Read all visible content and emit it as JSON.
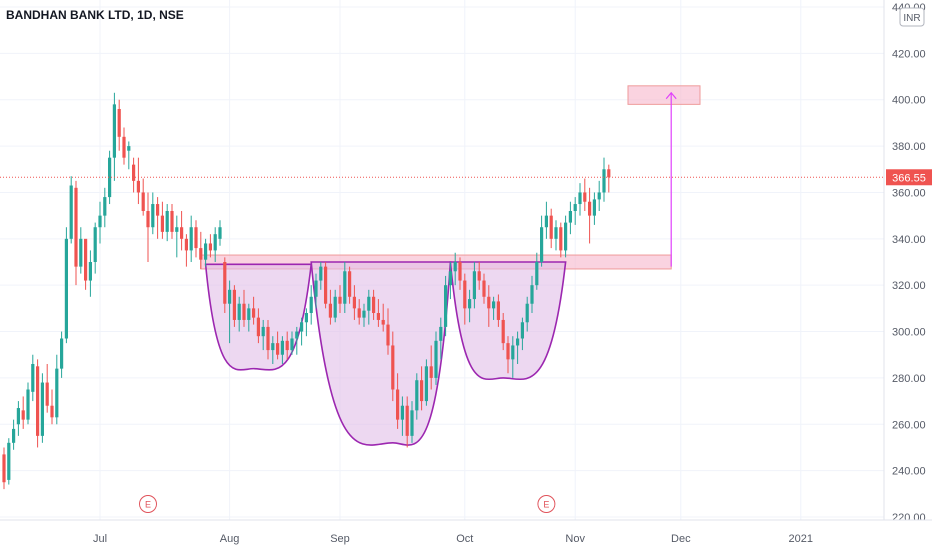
{
  "title": "BANDHAN BANK LTD, 1D, NSE",
  "currency": "INR",
  "chart_data": {
    "type": "candlestick",
    "title": "BANDHAN BANK LTD, 1D, NSE",
    "ylim": [
      220,
      440
    ],
    "y_ticks": [
      "220.00",
      "240.00",
      "260.00",
      "280.00",
      "300.00",
      "320.00",
      "340.00",
      "360.00",
      "380.00",
      "400.00",
      "420.00",
      "440.00"
    ],
    "x_ticks": [
      {
        "label": "Jul",
        "day": 20
      },
      {
        "label": "Aug",
        "day": 47
      },
      {
        "label": "Sep",
        "day": 70
      },
      {
        "label": "Oct",
        "day": 96
      },
      {
        "label": "Nov",
        "day": 119
      },
      {
        "label": "Dec",
        "day": 141
      },
      {
        "label": "2021",
        "day": 166
      }
    ],
    "last_price": "366.55",
    "last_price_value": 366.55,
    "candles": [
      [
        0,
        247,
        250,
        232,
        235
      ],
      [
        1,
        236,
        254,
        234,
        252
      ],
      [
        2,
        252,
        262,
        249,
        258
      ],
      [
        3,
        260,
        270,
        255,
        267
      ],
      [
        4,
        266,
        272,
        258,
        262
      ],
      [
        5,
        262,
        278,
        260,
        275
      ],
      [
        6,
        274,
        290,
        270,
        286
      ],
      [
        7,
        285,
        288,
        250,
        255
      ],
      [
        8,
        255,
        282,
        252,
        278
      ],
      [
        9,
        278,
        286,
        265,
        268
      ],
      [
        10,
        268,
        275,
        260,
        263
      ],
      [
        11,
        263,
        290,
        260,
        284
      ],
      [
        12,
        284,
        300,
        280,
        297
      ],
      [
        13,
        297,
        345,
        295,
        340
      ],
      [
        14,
        340,
        367,
        338,
        363
      ],
      [
        15,
        362,
        365,
        320,
        328
      ],
      [
        16,
        328,
        345,
        325,
        340
      ],
      [
        17,
        340,
        338,
        318,
        322
      ],
      [
        18,
        322,
        335,
        315,
        330
      ],
      [
        19,
        330,
        347,
        325,
        345
      ],
      [
        20,
        345,
        356,
        338,
        350
      ],
      [
        21,
        350,
        362,
        345,
        358
      ],
      [
        22,
        358,
        378,
        355,
        375
      ],
      [
        23,
        375,
        403,
        365,
        398
      ],
      [
        24,
        396,
        400,
        378,
        384
      ],
      [
        25,
        384,
        388,
        372,
        375
      ],
      [
        26,
        378,
        382,
        370,
        380
      ],
      [
        27,
        372,
        375,
        360,
        365
      ],
      [
        28,
        365,
        375,
        355,
        360
      ],
      [
        29,
        360,
        366,
        350,
        352
      ],
      [
        30,
        352,
        360,
        330,
        345
      ],
      [
        31,
        345,
        360,
        342,
        355
      ],
      [
        32,
        355,
        358,
        340,
        350
      ],
      [
        33,
        350,
        356,
        340,
        343
      ],
      [
        34,
        343,
        355,
        339,
        352
      ],
      [
        35,
        352,
        355,
        340,
        343
      ],
      [
        36,
        343,
        350,
        332,
        345
      ],
      [
        37,
        345,
        352,
        335,
        340
      ],
      [
        38,
        340,
        342,
        328,
        335
      ],
      [
        39,
        335,
        350,
        330,
        345
      ],
      [
        40,
        345,
        348,
        332,
        336
      ],
      [
        41,
        336,
        343,
        327,
        331
      ],
      [
        42,
        331,
        340,
        328,
        338
      ],
      [
        43,
        338,
        342,
        332,
        335
      ],
      [
        44,
        335,
        345,
        330,
        342
      ],
      [
        45,
        340,
        348,
        337,
        345
      ],
      [
        46,
        330,
        332,
        308,
        312
      ],
      [
        47,
        312,
        322,
        295,
        318
      ],
      [
        48,
        318,
        320,
        302,
        305
      ],
      [
        49,
        305,
        315,
        300,
        312
      ],
      [
        50,
        312,
        318,
        302,
        305
      ],
      [
        51,
        305,
        312,
        300,
        310
      ],
      [
        52,
        310,
        315,
        303,
        306
      ],
      [
        53,
        306,
        310,
        295,
        298
      ],
      [
        54,
        298,
        305,
        292,
        302
      ],
      [
        55,
        302,
        305,
        288,
        292
      ],
      [
        56,
        292,
        298,
        286,
        295
      ],
      [
        57,
        295,
        300,
        288,
        290
      ],
      [
        58,
        290,
        298,
        286,
        296
      ],
      [
        59,
        296,
        300,
        288,
        292
      ],
      [
        60,
        292,
        300,
        290,
        297
      ],
      [
        61,
        297,
        302,
        290,
        300
      ],
      [
        62,
        300,
        306,
        294,
        304
      ],
      [
        63,
        304,
        310,
        298,
        308
      ],
      [
        64,
        308,
        320,
        303,
        315
      ],
      [
        65,
        315,
        325,
        310,
        322
      ],
      [
        66,
        322,
        330,
        318,
        328
      ],
      [
        67,
        328,
        330,
        310,
        312
      ],
      [
        68,
        312,
        318,
        303,
        306
      ],
      [
        69,
        306,
        318,
        304,
        315
      ],
      [
        70,
        315,
        320,
        308,
        312
      ],
      [
        71,
        312,
        330,
        308,
        326
      ],
      [
        72,
        326,
        328,
        312,
        315
      ],
      [
        73,
        315,
        320,
        305,
        310
      ],
      [
        74,
        310,
        314,
        303,
        306
      ],
      [
        75,
        306,
        312,
        302,
        309
      ],
      [
        76,
        309,
        318,
        303,
        315
      ],
      [
        77,
        315,
        318,
        305,
        308
      ],
      [
        78,
        308,
        314,
        302,
        305
      ],
      [
        79,
        305,
        312,
        300,
        303
      ],
      [
        80,
        303,
        310,
        290,
        294
      ],
      [
        81,
        294,
        300,
        270,
        275
      ],
      [
        82,
        275,
        282,
        258,
        262
      ],
      [
        83,
        262,
        272,
        255,
        268
      ],
      [
        84,
        268,
        272,
        250,
        255
      ],
      [
        85,
        255,
        270,
        252,
        266
      ],
      [
        86,
        266,
        282,
        262,
        279
      ],
      [
        87,
        279,
        285,
        266,
        270
      ],
      [
        88,
        270,
        288,
        268,
        285
      ],
      [
        89,
        285,
        294,
        275,
        280
      ],
      [
        90,
        280,
        300,
        277,
        296
      ],
      [
        91,
        296,
        306,
        288,
        302
      ],
      [
        92,
        302,
        324,
        298,
        320
      ],
      [
        93,
        320,
        330,
        314,
        326
      ],
      [
        94,
        326,
        334,
        320,
        330
      ],
      [
        95,
        330,
        332,
        318,
        322
      ],
      [
        96,
        322,
        325,
        303,
        310
      ],
      [
        97,
        310,
        318,
        304,
        314
      ],
      [
        98,
        314,
        330,
        310,
        326
      ],
      [
        99,
        326,
        330,
        318,
        322
      ],
      [
        100,
        322,
        325,
        312,
        315
      ],
      [
        101,
        315,
        320,
        302,
        310
      ],
      [
        102,
        310,
        315,
        305,
        313
      ],
      [
        103,
        313,
        316,
        302,
        305
      ],
      [
        104,
        305,
        308,
        292,
        295
      ],
      [
        105,
        295,
        298,
        282,
        288
      ],
      [
        106,
        288,
        298,
        280,
        294
      ],
      [
        107,
        294,
        300,
        286,
        297
      ],
      [
        108,
        297,
        306,
        292,
        304
      ],
      [
        109,
        304,
        315,
        300,
        312
      ],
      [
        110,
        312,
        324,
        308,
        320
      ],
      [
        111,
        320,
        334,
        318,
        330
      ],
      [
        112,
        330,
        350,
        328,
        345
      ],
      [
        113,
        345,
        356,
        340,
        350
      ],
      [
        114,
        350,
        353,
        336,
        340
      ],
      [
        115,
        340,
        348,
        335,
        345
      ],
      [
        116,
        345,
        347,
        332,
        335
      ],
      [
        117,
        335,
        350,
        332,
        347
      ],
      [
        118,
        347,
        356,
        342,
        352
      ],
      [
        119,
        352,
        358,
        346,
        355
      ],
      [
        120,
        355,
        364,
        350,
        360
      ],
      [
        121,
        360,
        366,
        352,
        356
      ],
      [
        122,
        356,
        362,
        338,
        350
      ],
      [
        123,
        350,
        360,
        346,
        357
      ],
      [
        124,
        357,
        365,
        352,
        360
      ],
      [
        125,
        360,
        375,
        356,
        370
      ],
      [
        126,
        370,
        372,
        360,
        366.55
      ]
    ],
    "annotations": {
      "neckline_zone": {
        "day_start": 41,
        "day_end": 139,
        "y_low": 327,
        "y_high": 333
      },
      "target_zone": {
        "day_start": 130,
        "day_end": 145,
        "y_low": 398,
        "y_high": 406
      },
      "target_arrow": {
        "day": 139,
        "y_from": 328,
        "y_to": 403
      },
      "cups": [
        {
          "day_start": 42,
          "day_end": 64,
          "bottom_day": 52,
          "bottom_value": 284,
          "rim_value": 329
        },
        {
          "day_start": 64,
          "day_end": 93,
          "bottom_day": 81,
          "bottom_value": 252,
          "rim_value": 330
        },
        {
          "day_start": 93,
          "day_end": 117,
          "bottom_day": 104,
          "bottom_value": 280,
          "rim_value": 330
        }
      ],
      "earnings_markers": [
        {
          "label": "E",
          "day": 30
        },
        {
          "label": "E",
          "day": 113
        }
      ]
    }
  },
  "colors": {
    "up": "#26a69a",
    "down": "#ef5350",
    "cup_fill": "#e1bee7",
    "cup_stroke": "#9c27b0",
    "zone_fill": "#f8bbd0",
    "zone_stroke": "#ef9a9a",
    "arrow": "#e040fb",
    "price_tag": "#ef5350"
  }
}
